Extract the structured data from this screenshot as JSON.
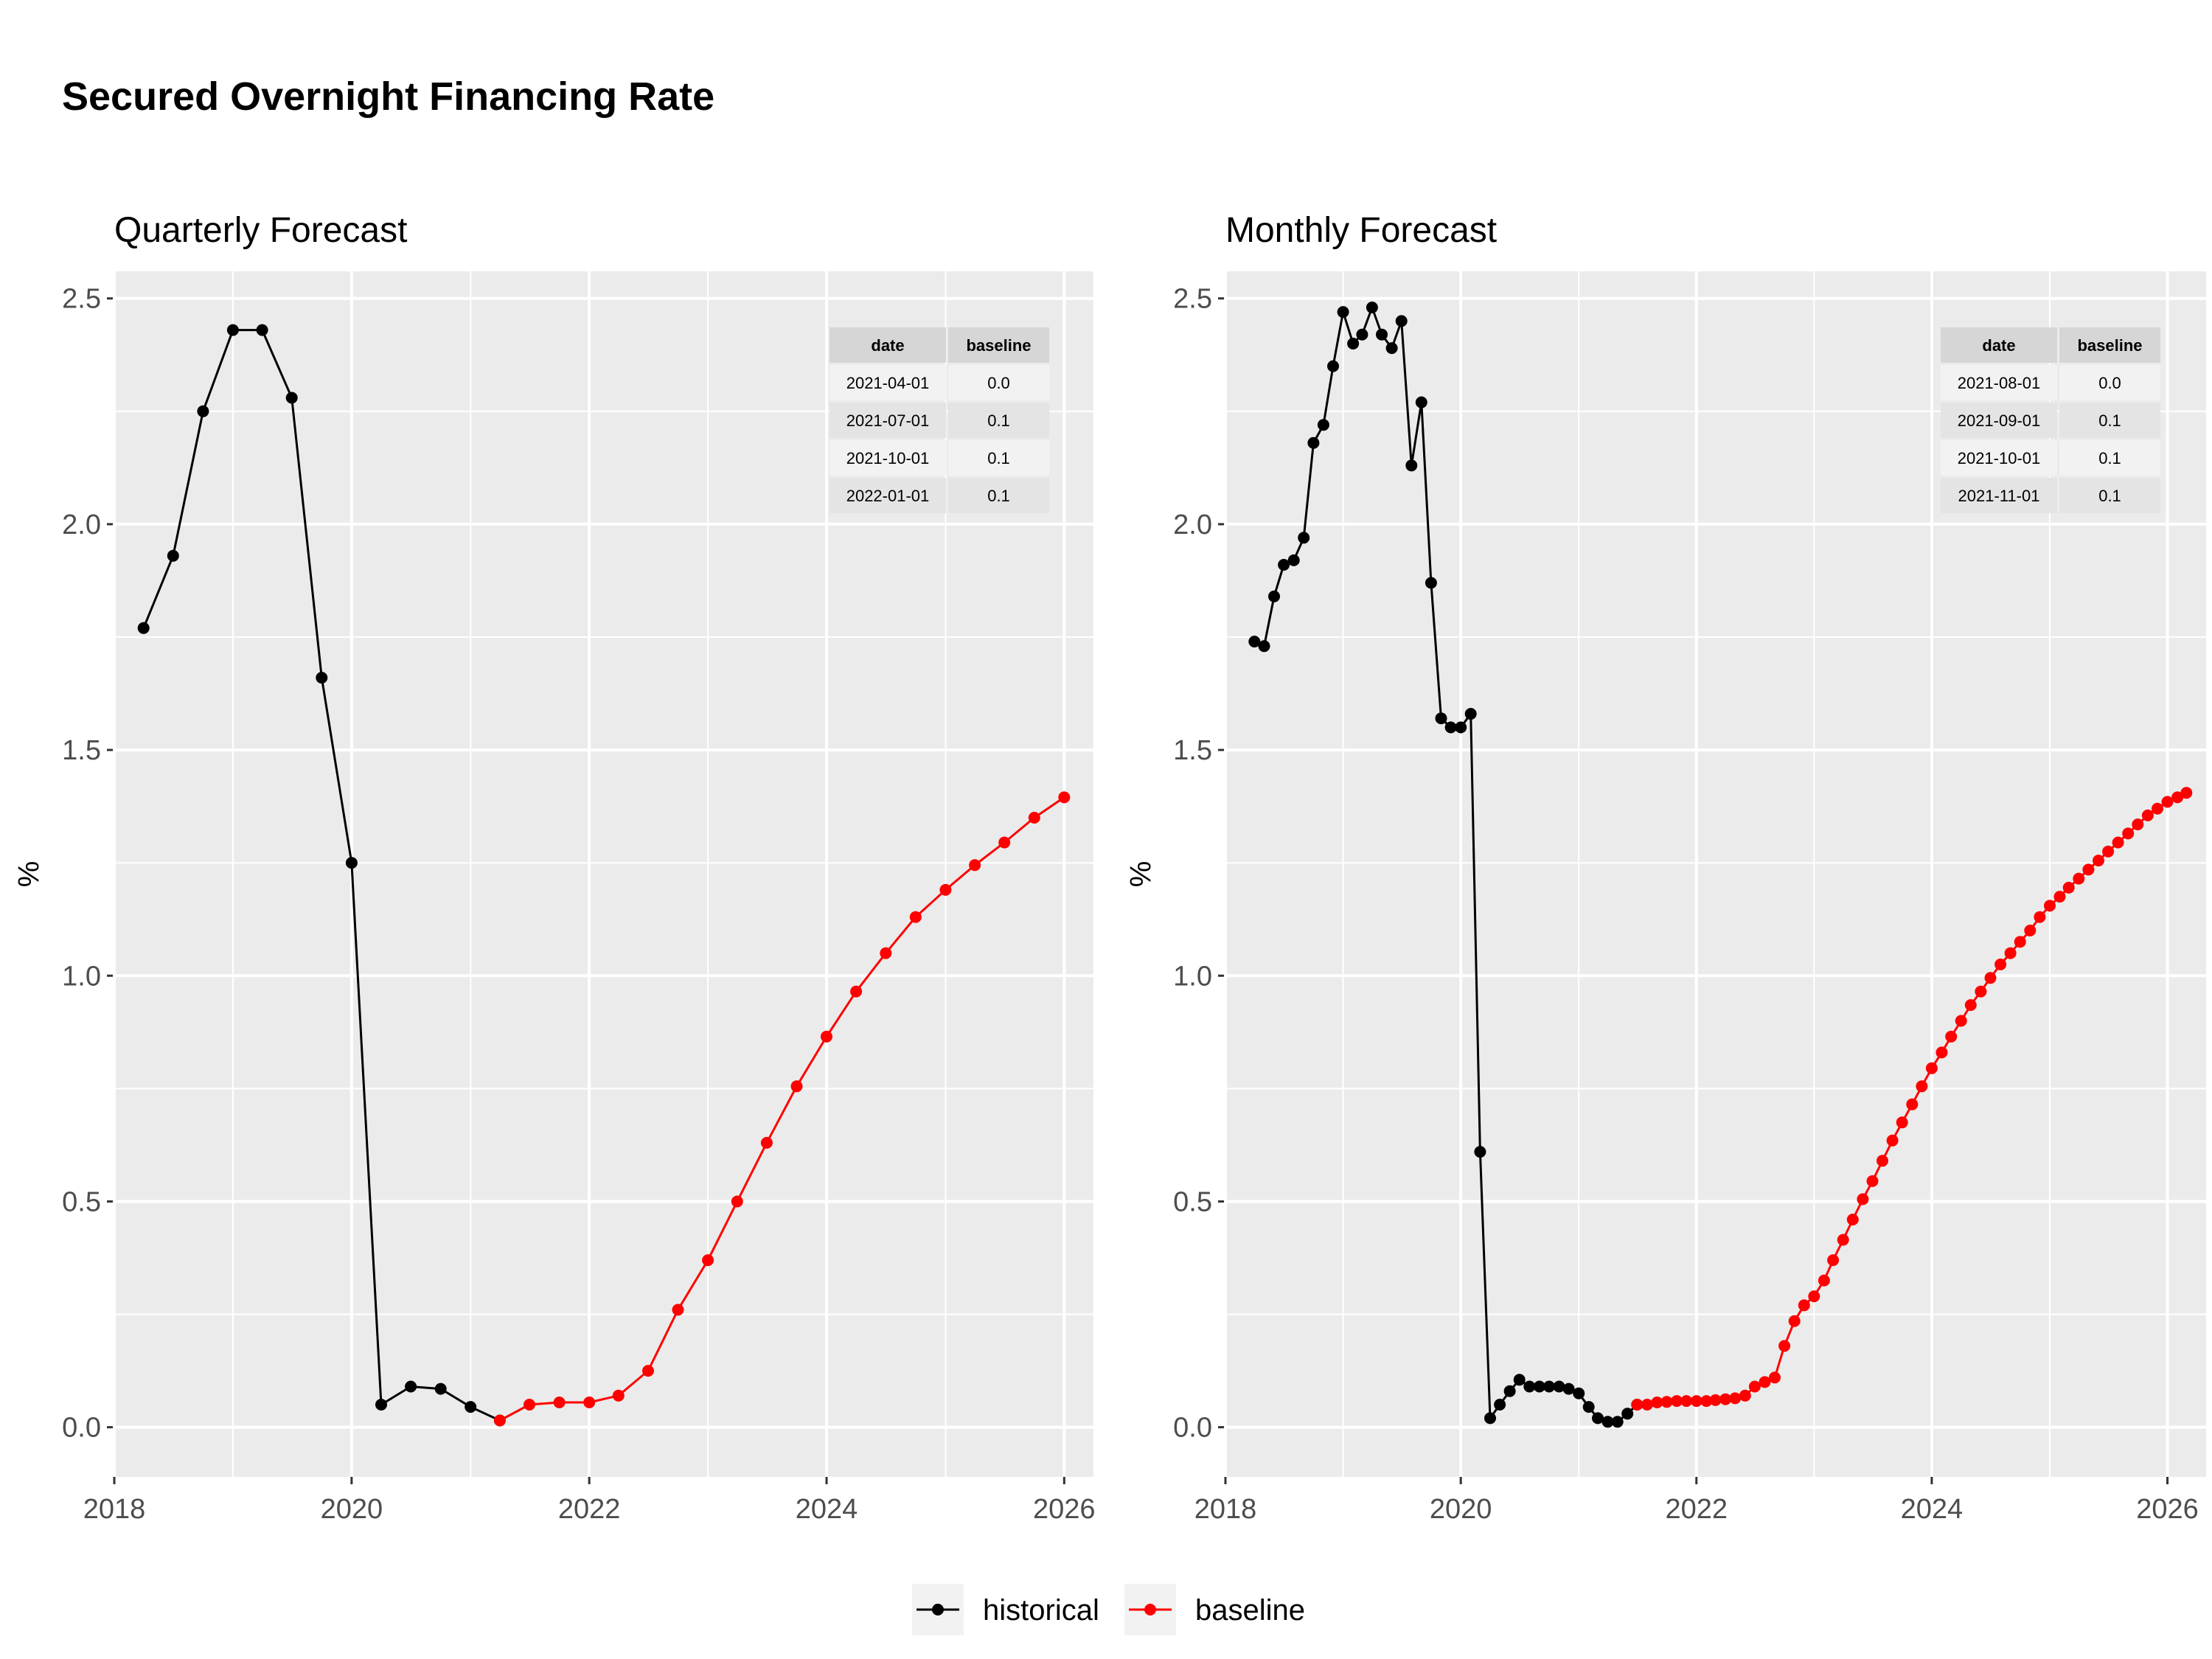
{
  "figure_title": "Secured Overnight Financing Rate",
  "legend": [
    {
      "label": "historical",
      "color": "#000000"
    },
    {
      "label": "baseline",
      "color": "#ff0000"
    }
  ],
  "colors": {
    "historical": "#000000",
    "baseline": "#ff0000",
    "panel_bg": "#ebebeb",
    "grid": "#ffffff"
  },
  "chart_data": [
    {
      "type": "line",
      "title": "Quarterly Forecast",
      "xlabel": "",
      "ylabel": "%",
      "xlim": [
        "2018-01-01",
        "2026-04-01"
      ],
      "ylim": [
        -0.11,
        2.56
      ],
      "x_ticks": [
        "2018",
        "2020",
        "2022",
        "2024",
        "2026"
      ],
      "y_ticks": [
        "0.0",
        "0.5",
        "1.0",
        "1.5",
        "2.0",
        "2.5"
      ],
      "grid": true,
      "legend_position": "bottom",
      "series": [
        {
          "name": "historical",
          "color": "#000000",
          "points": [
            [
              "2018-04-01",
              1.77
            ],
            [
              "2018-07-01",
              1.93
            ],
            [
              "2018-10-01",
              2.25
            ],
            [
              "2019-01-01",
              2.43
            ],
            [
              "2019-04-01",
              2.43
            ],
            [
              "2019-07-01",
              2.28
            ],
            [
              "2019-10-01",
              1.66
            ],
            [
              "2020-01-01",
              1.25
            ],
            [
              "2020-04-01",
              0.05
            ],
            [
              "2020-07-01",
              0.09
            ],
            [
              "2020-10-01",
              0.085
            ],
            [
              "2021-01-01",
              0.045
            ],
            [
              "2021-04-01",
              0.015
            ]
          ]
        },
        {
          "name": "baseline",
          "color": "#ff0000",
          "points": [
            [
              "2021-04-01",
              0.015
            ],
            [
              "2021-07-01",
              0.05
            ],
            [
              "2021-10-01",
              0.055
            ],
            [
              "2022-01-01",
              0.055
            ],
            [
              "2022-04-01",
              0.07
            ],
            [
              "2022-07-01",
              0.125
            ],
            [
              "2022-10-01",
              0.26
            ],
            [
              "2023-01-01",
              0.37
            ],
            [
              "2023-04-01",
              0.5
            ],
            [
              "2023-07-01",
              0.63
            ],
            [
              "2023-10-01",
              0.755
            ],
            [
              "2024-01-01",
              0.865
            ],
            [
              "2024-04-01",
              0.965
            ],
            [
              "2024-07-01",
              1.05
            ],
            [
              "2024-10-01",
              1.13
            ],
            [
              "2025-01-01",
              1.19
            ],
            [
              "2025-04-01",
              1.245
            ],
            [
              "2025-07-01",
              1.295
            ],
            [
              "2025-10-01",
              1.35
            ],
            [
              "2026-01-01",
              1.395
            ]
          ]
        }
      ],
      "table": {
        "columns": [
          "date",
          "baseline"
        ],
        "rows": [
          [
            "2021-04-01",
            "0.0"
          ],
          [
            "2021-07-01",
            "0.1"
          ],
          [
            "2021-10-01",
            "0.1"
          ],
          [
            "2022-01-01",
            "0.1"
          ]
        ]
      }
    },
    {
      "type": "line",
      "title": "Monthly Forecast",
      "xlabel": "",
      "ylabel": "%",
      "xlim": [
        "2018-01-01",
        "2026-05-01"
      ],
      "ylim": [
        -0.11,
        2.56
      ],
      "x_ticks": [
        "2018",
        "2020",
        "2022",
        "2024",
        "2026"
      ],
      "y_ticks": [
        "0.0",
        "0.5",
        "1.0",
        "1.5",
        "2.0",
        "2.5"
      ],
      "grid": true,
      "legend_position": "bottom",
      "series": [
        {
          "name": "historical",
          "color": "#000000",
          "points": [
            [
              "2018-04-01",
              1.74
            ],
            [
              "2018-05-01",
              1.73
            ],
            [
              "2018-06-01",
              1.84
            ],
            [
              "2018-07-01",
              1.91
            ],
            [
              "2018-08-01",
              1.92
            ],
            [
              "2018-09-01",
              1.97
            ],
            [
              "2018-10-01",
              2.18
            ],
            [
              "2018-11-01",
              2.22
            ],
            [
              "2018-12-01",
              2.35
            ],
            [
              "2019-01-01",
              2.47
            ],
            [
              "2019-02-01",
              2.4
            ],
            [
              "2019-03-01",
              2.42
            ],
            [
              "2019-04-01",
              2.48
            ],
            [
              "2019-05-01",
              2.42
            ],
            [
              "2019-06-01",
              2.39
            ],
            [
              "2019-07-01",
              2.45
            ],
            [
              "2019-08-01",
              2.13
            ],
            [
              "2019-09-01",
              2.27
            ],
            [
              "2019-10-01",
              1.87
            ],
            [
              "2019-11-01",
              1.57
            ],
            [
              "2019-12-01",
              1.55
            ],
            [
              "2020-01-01",
              1.55
            ],
            [
              "2020-02-01",
              1.58
            ],
            [
              "2020-03-01",
              0.61
            ],
            [
              "2020-04-01",
              0.02
            ],
            [
              "2020-05-01",
              0.05
            ],
            [
              "2020-06-01",
              0.08
            ],
            [
              "2020-07-01",
              0.105
            ],
            [
              "2020-08-01",
              0.09
            ],
            [
              "2020-09-01",
              0.09
            ],
            [
              "2020-10-01",
              0.09
            ],
            [
              "2020-11-01",
              0.09
            ],
            [
              "2020-12-01",
              0.085
            ],
            [
              "2021-01-01",
              0.075
            ],
            [
              "2021-02-01",
              0.045
            ],
            [
              "2021-03-01",
              0.02
            ],
            [
              "2021-04-01",
              0.012
            ],
            [
              "2021-05-01",
              0.012
            ],
            [
              "2021-06-01",
              0.03
            ],
            [
              "2021-07-01",
              0.05
            ]
          ]
        },
        {
          "name": "baseline",
          "color": "#ff0000",
          "points": [
            [
              "2021-07-01",
              0.05
            ],
            [
              "2021-08-01",
              0.05
            ],
            [
              "2021-09-01",
              0.055
            ],
            [
              "2021-10-01",
              0.056
            ],
            [
              "2021-11-01",
              0.058
            ],
            [
              "2021-12-01",
              0.058
            ],
            [
              "2022-01-01",
              0.058
            ],
            [
              "2022-02-01",
              0.058
            ],
            [
              "2022-03-01",
              0.06
            ],
            [
              "2022-04-01",
              0.062
            ],
            [
              "2022-05-01",
              0.064
            ],
            [
              "2022-06-01",
              0.07
            ],
            [
              "2022-07-01",
              0.09
            ],
            [
              "2022-08-01",
              0.1
            ],
            [
              "2022-09-01",
              0.11
            ],
            [
              "2022-10-01",
              0.18
            ],
            [
              "2022-11-01",
              0.235
            ],
            [
              "2022-12-01",
              0.27
            ],
            [
              "2023-01-01",
              0.29
            ],
            [
              "2023-02-01",
              0.325
            ],
            [
              "2023-03-01",
              0.37
            ],
            [
              "2023-04-01",
              0.415
            ],
            [
              "2023-05-01",
              0.46
            ],
            [
              "2023-06-01",
              0.505
            ],
            [
              "2023-07-01",
              0.545
            ],
            [
              "2023-08-01",
              0.59
            ],
            [
              "2023-09-01",
              0.635
            ],
            [
              "2023-10-01",
              0.675
            ],
            [
              "2023-11-01",
              0.715
            ],
            [
              "2023-12-01",
              0.755
            ],
            [
              "2024-01-01",
              0.795
            ],
            [
              "2024-02-01",
              0.83
            ],
            [
              "2024-03-01",
              0.865
            ],
            [
              "2024-04-01",
              0.9
            ],
            [
              "2024-05-01",
              0.935
            ],
            [
              "2024-06-01",
              0.965
            ],
            [
              "2024-07-01",
              0.995
            ],
            [
              "2024-08-01",
              1.025
            ],
            [
              "2024-09-01",
              1.05
            ],
            [
              "2024-10-01",
              1.075
            ],
            [
              "2024-11-01",
              1.1
            ],
            [
              "2024-12-01",
              1.13
            ],
            [
              "2025-01-01",
              1.155
            ],
            [
              "2025-02-01",
              1.175
            ],
            [
              "2025-03-01",
              1.195
            ],
            [
              "2025-04-01",
              1.215
            ],
            [
              "2025-05-01",
              1.235
            ],
            [
              "2025-06-01",
              1.255
            ],
            [
              "2025-07-01",
              1.275
            ],
            [
              "2025-08-01",
              1.295
            ],
            [
              "2025-09-01",
              1.315
            ],
            [
              "2025-10-01",
              1.335
            ],
            [
              "2025-11-01",
              1.355
            ],
            [
              "2025-12-01",
              1.37
            ],
            [
              "2026-01-01",
              1.385
            ],
            [
              "2026-02-01",
              1.395
            ],
            [
              "2026-03-01",
              1.405
            ]
          ]
        }
      ],
      "table": {
        "columns": [
          "date",
          "baseline"
        ],
        "rows": [
          [
            "2021-08-01",
            "0.0"
          ],
          [
            "2021-09-01",
            "0.1"
          ],
          [
            "2021-10-01",
            "0.1"
          ],
          [
            "2021-11-01",
            "0.1"
          ]
        ]
      }
    }
  ]
}
